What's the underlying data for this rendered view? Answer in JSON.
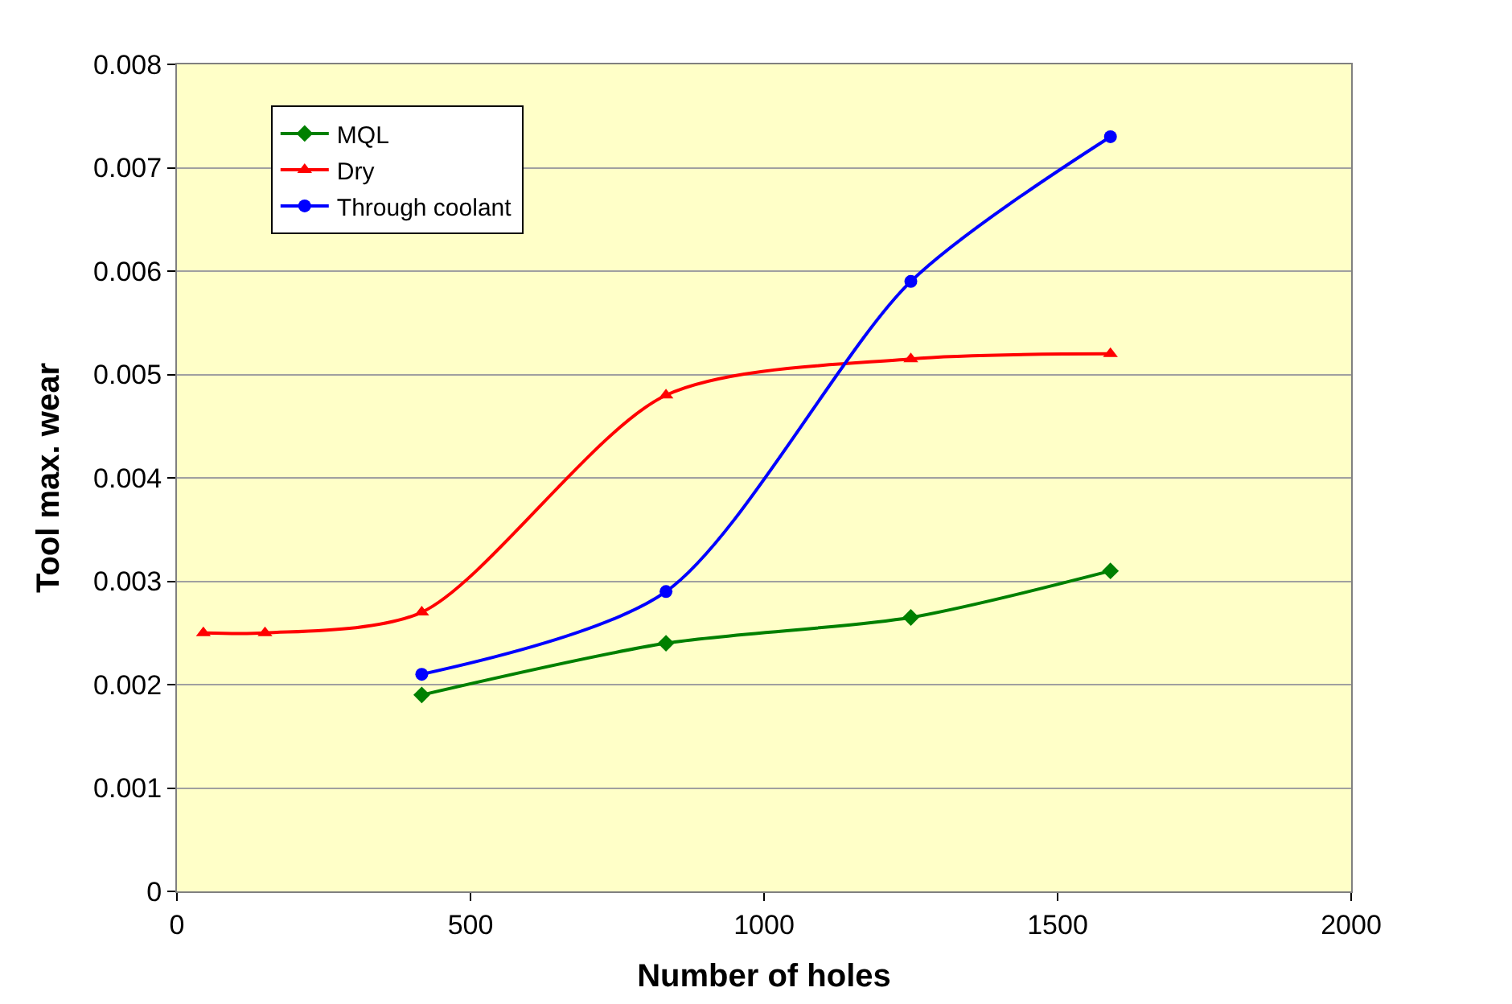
{
  "chart_data": {
    "type": "line",
    "xlabel": "Number of holes",
    "ylabel": "Tool max. wear",
    "x": [
      417,
      833,
      1250,
      1590
    ],
    "series": [
      {
        "name": "MQL",
        "color": "#008000",
        "marker": "diamond",
        "values": [
          0.0019,
          0.0024,
          0.00265,
          0.0031
        ]
      },
      {
        "name": "Dry",
        "color": "#ff0000",
        "marker": "triangle",
        "x": [
          45,
          150,
          417,
          833,
          1250,
          1590
        ],
        "values": [
          0.0025,
          0.0025,
          0.0027,
          0.0048,
          0.00515,
          0.0052
        ]
      },
      {
        "name": "Through coolant",
        "color": "#0000ff",
        "marker": "circle",
        "values": [
          0.0021,
          0.0029,
          0.0059,
          0.0073
        ]
      }
    ],
    "xlim": [
      0,
      2000
    ],
    "xticks": [
      0,
      500,
      1000,
      1500,
      2000
    ],
    "ylim": [
      0,
      0.008
    ],
    "yticks": [
      0,
      0.001,
      0.002,
      0.003,
      0.004,
      0.005,
      0.006,
      0.007,
      0.008
    ],
    "grid": "y",
    "legend": "top left",
    "line_style": "solid"
  }
}
